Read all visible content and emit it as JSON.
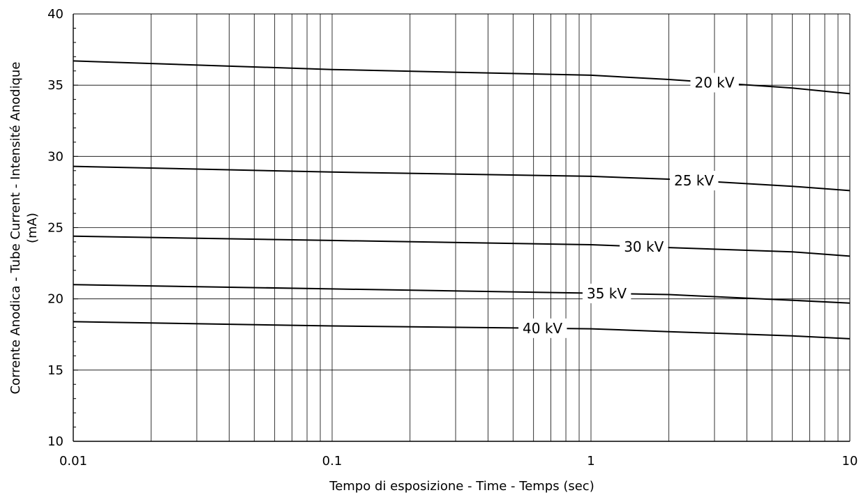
{
  "chart_data": {
    "type": "line",
    "xlabel": "Tempo di esposizione - Time - Temps  (sec)",
    "ylabel_line1": "Corrente Anodica - Tube Current - Intensité Anodique",
    "ylabel_line2": "(mA)",
    "x_scale": "log",
    "xlim": [
      0.01,
      10
    ],
    "ylim": [
      10,
      40
    ],
    "x_ticks": [
      0.01,
      0.1,
      1,
      10
    ],
    "x_tick_labels": [
      "0.01",
      "0.1",
      "1",
      "10"
    ],
    "y_ticks": [
      10,
      15,
      20,
      25,
      30,
      35,
      40
    ],
    "y_tick_labels": [
      "10",
      "15",
      "20",
      "25",
      "30",
      "35",
      "40"
    ],
    "grid": true,
    "series": [
      {
        "name": "20 kV",
        "x": [
          0.01,
          0.1,
          1,
          2,
          6,
          10
        ],
        "y": [
          36.7,
          36.1,
          35.7,
          35.4,
          34.8,
          34.4
        ],
        "label_x": 3.0
      },
      {
        "name": "25 kV",
        "x": [
          0.01,
          0.1,
          1,
          2,
          6,
          10
        ],
        "y": [
          29.3,
          28.9,
          28.6,
          28.4,
          27.9,
          27.6
        ],
        "label_x": 2.5
      },
      {
        "name": "30 kV",
        "x": [
          0.01,
          0.1,
          1,
          2,
          6,
          10
        ],
        "y": [
          24.4,
          24.1,
          23.8,
          23.6,
          23.3,
          23.0
        ],
        "label_x": 1.6
      },
      {
        "name": "35 kV",
        "x": [
          0.01,
          0.1,
          1,
          2,
          6,
          10
        ],
        "y": [
          21.0,
          20.7,
          20.4,
          20.3,
          19.9,
          19.7
        ],
        "label_x": 1.15
      },
      {
        "name": "40 kV",
        "x": [
          0.01,
          0.1,
          1,
          2,
          6,
          10
        ],
        "y": [
          18.4,
          18.1,
          17.9,
          17.7,
          17.4,
          17.2
        ],
        "label_x": 0.65
      }
    ]
  }
}
